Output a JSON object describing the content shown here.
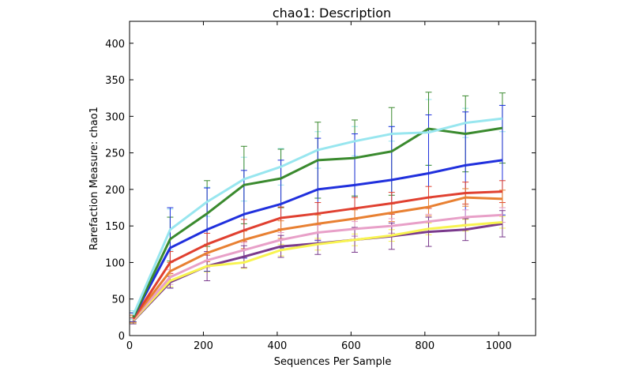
{
  "chart_data": {
    "type": "line",
    "title": "chao1: Description",
    "xlabel": "Sequences Per Sample",
    "ylabel": "Rarefaction Measure: chao1",
    "xlim": [
      0,
      1100
    ],
    "ylim": [
      0,
      430
    ],
    "xticks": [
      0,
      200,
      400,
      600,
      800,
      1000
    ],
    "yticks": [
      0,
      50,
      100,
      150,
      200,
      250,
      300,
      350,
      400
    ],
    "grid": false,
    "legend": "none",
    "x": [
      10,
      110,
      210,
      310,
      410,
      510,
      610,
      710,
      810,
      910,
      1010
    ],
    "series": [
      {
        "color": "#98e6ef",
        "values": [
          28,
          145,
          183,
          214,
          231,
          254,
          266,
          276,
          278,
          291,
          297
        ],
        "errors": [
          6,
          28,
          20,
          30,
          25,
          25,
          20,
          10,
          45,
          20,
          18
        ]
      },
      {
        "color": "#3a8a2e",
        "values": [
          25,
          132,
          167,
          206,
          215,
          240,
          243,
          252,
          283,
          276,
          284
        ],
        "errors": [
          6,
          30,
          45,
          53,
          40,
          52,
          52,
          60,
          50,
          52,
          48
        ]
      },
      {
        "color": "#2030dd",
        "values": [
          25,
          120,
          145,
          166,
          180,
          200,
          206,
          213,
          222,
          233,
          240
        ],
        "errors": [
          6,
          55,
          57,
          60,
          60,
          70,
          70,
          73,
          80,
          73,
          75
        ]
      },
      {
        "color": "#e04030",
        "values": [
          23,
          100,
          125,
          144,
          161,
          167,
          174,
          181,
          189,
          195,
          197
        ],
        "errors": [
          5,
          15,
          15,
          15,
          15,
          15,
          15,
          15,
          15,
          15,
          15
        ]
      },
      {
        "color": "#e88032",
        "values": [
          23,
          88,
          113,
          131,
          145,
          153,
          160,
          168,
          176,
          189,
          187
        ],
        "errors": [
          5,
          12,
          12,
          12,
          12,
          12,
          12,
          12,
          12,
          12,
          12
        ]
      },
      {
        "color": "#e8a0c8",
        "values": [
          22,
          80,
          103,
          117,
          131,
          141,
          146,
          150,
          156,
          162,
          165
        ],
        "errors": [
          5,
          10,
          10,
          10,
          10,
          10,
          10,
          10,
          10,
          10,
          10
        ]
      },
      {
        "color": "#f8f450",
        "values": [
          21,
          75,
          95,
          100,
          117,
          125,
          131,
          137,
          146,
          151,
          155
        ],
        "errors": [
          4,
          8,
          8,
          8,
          8,
          8,
          8,
          8,
          8,
          8,
          8
        ]
      },
      {
        "color": "#7a3a8c",
        "values": [
          20,
          73,
          95,
          108,
          122,
          126,
          131,
          136,
          142,
          145,
          153
        ],
        "errors": [
          4,
          8,
          20,
          15,
          15,
          15,
          17,
          18,
          20,
          15,
          18
        ]
      }
    ]
  }
}
